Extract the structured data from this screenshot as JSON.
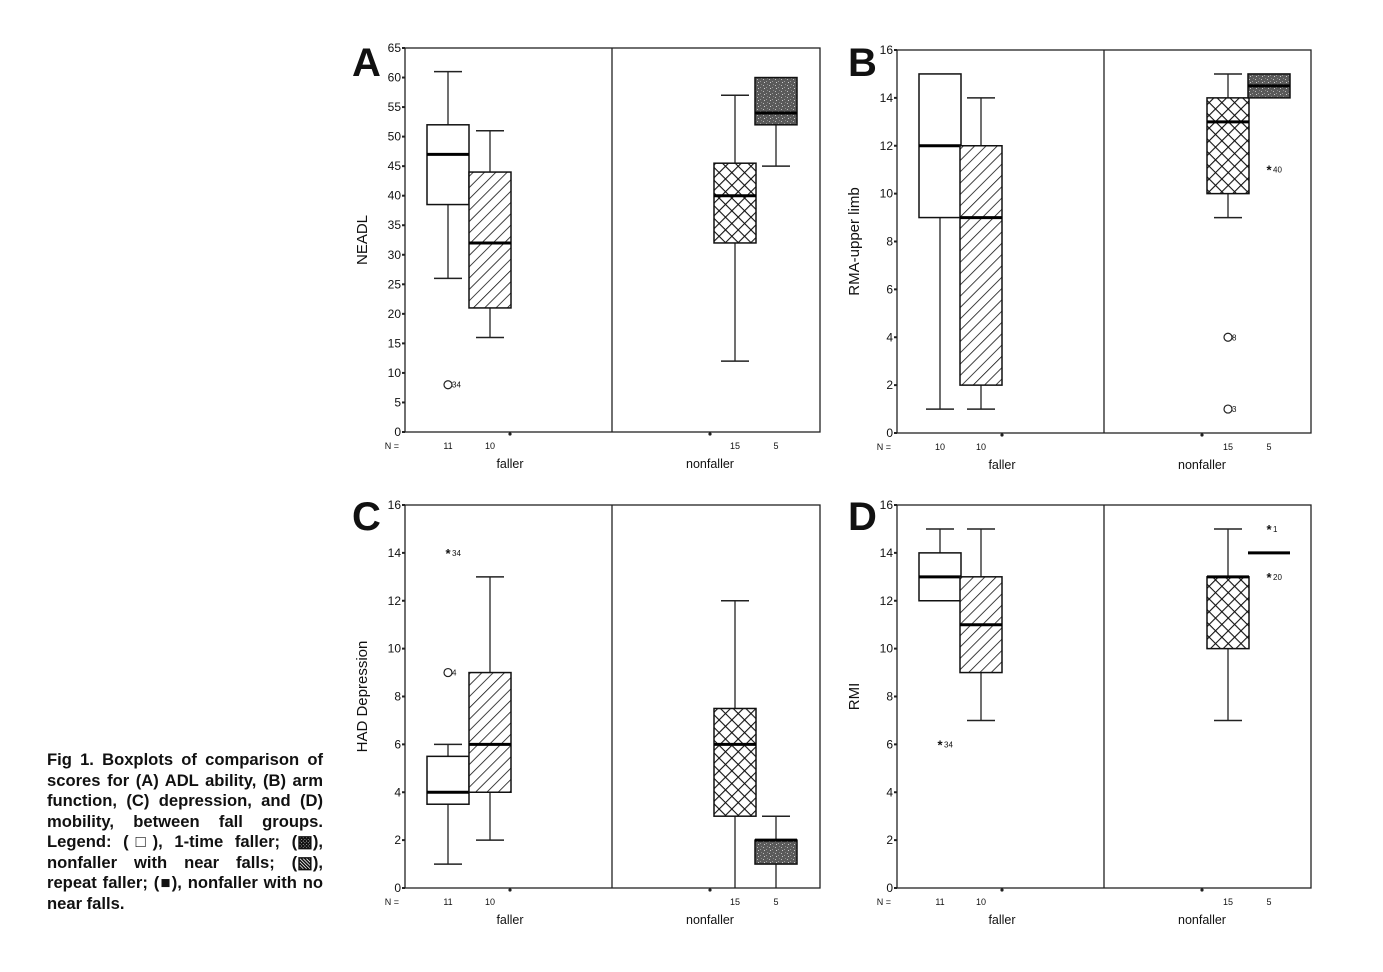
{
  "caption": "Fig 1.  Boxplots of comparison of scores for (A) ADL ability, (B) arm function, (C) depression, and (D) mobility, between fall groups. Legend: (□), 1-time faller; (▩), nonfaller with near falls; (▧), repeat faller; (■), nonfaller with no near falls.",
  "legend": [
    {
      "key": "one_time",
      "label": "1-time faller",
      "pattern": "empty"
    },
    {
      "key": "near",
      "label": "nonfaller with near falls",
      "pattern": "crosshatch"
    },
    {
      "key": "repeat",
      "label": "repeat faller",
      "pattern": "diagonal"
    },
    {
      "key": "nonear",
      "label": "nonfaller with no near falls",
      "pattern": "dark-stipple"
    }
  ],
  "colors": {
    "ink": "#111111",
    "stipple": "#555555",
    "background": "#ffffff"
  },
  "chart_data": [
    {
      "type": "boxplot",
      "panel": "A",
      "ylabel": "NEADL",
      "ylim": [
        0,
        65
      ],
      "yticks": [
        0,
        5,
        10,
        15,
        20,
        25,
        30,
        35,
        40,
        45,
        50,
        55,
        60,
        65
      ],
      "n_label": "N =",
      "groups": [
        "faller",
        "nonfaller"
      ],
      "boxes": [
        {
          "group": "faller",
          "series": "one_time",
          "n": "11",
          "min": 26,
          "q1": 38.5,
          "median": 47,
          "q3": 52,
          "max": 61
        },
        {
          "group": "faller",
          "series": "repeat",
          "n": "10",
          "min": 16,
          "q1": 21,
          "median": 32,
          "q3": 44,
          "max": 51
        },
        {
          "group": "nonfaller",
          "series": "near",
          "n": "15",
          "min": 12,
          "q1": 32,
          "median": 40,
          "q3": 45.5,
          "max": 57
        },
        {
          "group": "nonfaller",
          "series": "nonear",
          "n": "5",
          "min": 45,
          "q1": 52,
          "median": 54,
          "q3": 60,
          "max": 60
        }
      ],
      "outliers": [
        {
          "box": 0,
          "value": 8,
          "marker": "circle",
          "label": "34"
        }
      ]
    },
    {
      "type": "boxplot",
      "panel": "B",
      "ylabel": "RMA-upper limb",
      "ylim": [
        0,
        16
      ],
      "yticks": [
        0,
        2,
        4,
        6,
        8,
        10,
        12,
        14,
        16
      ],
      "n_label": "N =",
      "groups": [
        "faller",
        "nonfaller"
      ],
      "boxes": [
        {
          "group": "faller",
          "series": "one_time",
          "n": "10",
          "min": 1,
          "q1": 9,
          "median": 12,
          "q3": 15,
          "max": 15
        },
        {
          "group": "faller",
          "series": "repeat",
          "n": "10",
          "min": 1,
          "q1": 2,
          "median": 9,
          "q3": 12,
          "max": 14
        },
        {
          "group": "nonfaller",
          "series": "near",
          "n": "15",
          "min": 9,
          "q1": 10,
          "median": 13,
          "q3": 14,
          "max": 15
        },
        {
          "group": "nonfaller",
          "series": "nonear",
          "n": "5",
          "min": 14,
          "q1": 14,
          "median": 14.5,
          "q3": 15,
          "max": 15
        }
      ],
      "outliers": [
        {
          "box": 2,
          "value": 4,
          "marker": "circle",
          "label": "8"
        },
        {
          "box": 2,
          "value": 1,
          "marker": "circle",
          "label": "3"
        },
        {
          "box": 3,
          "value": 11,
          "marker": "star",
          "label": "40"
        }
      ]
    },
    {
      "type": "boxplot",
      "panel": "C",
      "ylabel": "HAD Depression",
      "ylim": [
        0,
        16
      ],
      "yticks": [
        0,
        2,
        4,
        6,
        8,
        10,
        12,
        14,
        16
      ],
      "n_label": "N =",
      "groups": [
        "faller",
        "nonfaller"
      ],
      "boxes": [
        {
          "group": "faller",
          "series": "one_time",
          "n": "11",
          "min": 1,
          "q1": 3.5,
          "median": 4,
          "q3": 5.5,
          "max": 6
        },
        {
          "group": "faller",
          "series": "repeat",
          "n": "10",
          "min": 2,
          "q1": 4,
          "median": 6,
          "q3": 9,
          "max": 13
        },
        {
          "group": "nonfaller",
          "series": "near",
          "n": "15",
          "min": 0,
          "q1": 3,
          "median": 6,
          "q3": 7.5,
          "max": 12
        },
        {
          "group": "nonfaller",
          "series": "nonear",
          "n": "5",
          "min": 0,
          "q1": 1,
          "median": 2,
          "q3": 2,
          "max": 3
        }
      ],
      "outliers": [
        {
          "box": 0,
          "value": 14,
          "marker": "star",
          "label": "34"
        },
        {
          "box": 0,
          "value": 9,
          "marker": "circle",
          "label": "4"
        }
      ]
    },
    {
      "type": "boxplot",
      "panel": "D",
      "ylabel": "RMI",
      "ylim": [
        0,
        16
      ],
      "yticks": [
        0,
        2,
        4,
        6,
        8,
        10,
        12,
        14,
        16
      ],
      "n_label": "N =",
      "groups": [
        "faller",
        "nonfaller"
      ],
      "boxes": [
        {
          "group": "faller",
          "series": "one_time",
          "n": "11",
          "min": 12,
          "q1": 12,
          "median": 13,
          "q3": 14,
          "max": 15
        },
        {
          "group": "faller",
          "series": "repeat",
          "n": "10",
          "min": 7,
          "q1": 9,
          "median": 11,
          "q3": 13,
          "max": 15
        },
        {
          "group": "nonfaller",
          "series": "near",
          "n": "15",
          "min": 7,
          "q1": 10,
          "median": 13,
          "q3": 13,
          "max": 15
        },
        {
          "group": "nonfaller",
          "series": "nonear",
          "n": "5",
          "min": 14,
          "q1": 14,
          "median": 14,
          "q3": 14,
          "max": 14
        }
      ],
      "outliers": [
        {
          "box": 0,
          "value": 6,
          "marker": "star",
          "label": "34"
        },
        {
          "box": 3,
          "value": 15,
          "marker": "star",
          "label": "1"
        },
        {
          "box": 3,
          "value": 13,
          "marker": "star",
          "label": "20"
        }
      ]
    }
  ]
}
